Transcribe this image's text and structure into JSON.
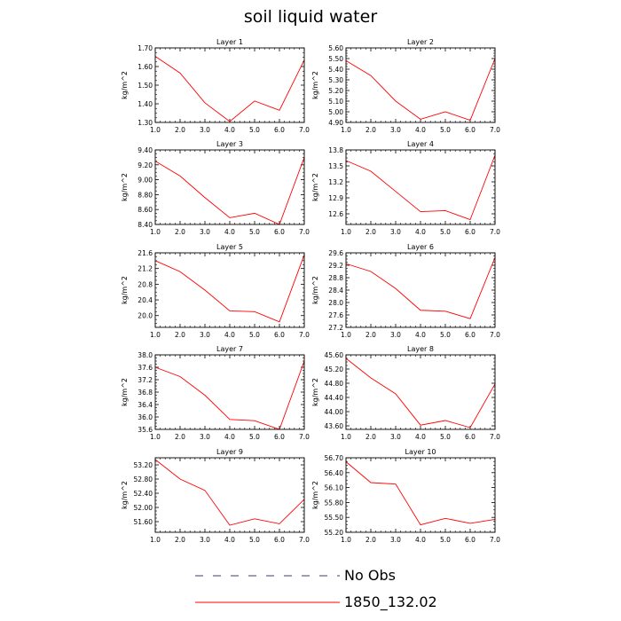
{
  "title": "soil liquid water",
  "legend": {
    "items": [
      {
        "label": "No Obs",
        "color": "#3a3a7a",
        "dash": true
      },
      {
        "label": "1850_132.02",
        "color": "#ff0000",
        "dash": false
      }
    ]
  },
  "chart_data": [
    {
      "type": "line",
      "title": "Layer 1",
      "ylabel": "kg/m^2",
      "x": [
        1,
        2,
        3,
        4,
        5,
        6,
        7
      ],
      "xticks": [
        "1.0",
        "2.0",
        "3.0",
        "4.0",
        "5.0",
        "6.0",
        "7.0"
      ],
      "ylim": [
        1.3,
        1.7
      ],
      "yticks": [
        "1.30",
        "1.40",
        "1.50",
        "1.60",
        "1.70"
      ],
      "series": [
        {
          "color": "#ff0000",
          "values": [
            1.655,
            1.565,
            1.405,
            1.305,
            1.415,
            1.365,
            1.635
          ]
        }
      ]
    },
    {
      "type": "line",
      "title": "Layer 2",
      "ylabel": "kg/m^2",
      "x": [
        1,
        2,
        3,
        4,
        5,
        6,
        7
      ],
      "xticks": [
        "1.0",
        "2.0",
        "3.0",
        "4.0",
        "5.0",
        "6.0",
        "7.0"
      ],
      "ylim": [
        4.9,
        5.6
      ],
      "yticks": [
        "4.90",
        "5.00",
        "5.10",
        "5.20",
        "5.30",
        "5.40",
        "5.50",
        "5.60"
      ],
      "series": [
        {
          "color": "#ff0000",
          "values": [
            5.48,
            5.34,
            5.1,
            4.93,
            5.0,
            4.92,
            5.5
          ]
        }
      ]
    },
    {
      "type": "line",
      "title": "Layer 3",
      "ylabel": "kg/m^2",
      "x": [
        1,
        2,
        3,
        4,
        5,
        6,
        7
      ],
      "xticks": [
        "1.0",
        "2.0",
        "3.0",
        "4.0",
        "5.0",
        "6.0",
        "7.0"
      ],
      "ylim": [
        8.4,
        9.4
      ],
      "yticks": [
        "8.40",
        "8.60",
        "8.80",
        "9.00",
        "9.20",
        "9.40"
      ],
      "series": [
        {
          "color": "#ff0000",
          "values": [
            9.25,
            9.05,
            8.76,
            8.49,
            8.55,
            8.4,
            9.3
          ]
        }
      ]
    },
    {
      "type": "line",
      "title": "Layer 4",
      "ylabel": "kg/m^2",
      "x": [
        1,
        2,
        3,
        4,
        5,
        6,
        7
      ],
      "xticks": [
        "1.0",
        "2.0",
        "3.0",
        "4.0",
        "5.0",
        "6.0",
        "7.0"
      ],
      "ylim": [
        12.4,
        13.8
      ],
      "yticks": [
        "12.6",
        "12.9",
        "13.2",
        "13.5",
        "13.8"
      ],
      "series": [
        {
          "color": "#ff0000",
          "values": [
            13.6,
            13.4,
            13.02,
            12.64,
            12.66,
            12.49,
            13.7
          ]
        }
      ]
    },
    {
      "type": "line",
      "title": "Layer 5",
      "ylabel": "kg/m^2",
      "x": [
        1,
        2,
        3,
        4,
        5,
        6,
        7
      ],
      "xticks": [
        "1.0",
        "2.0",
        "3.0",
        "4.0",
        "5.0",
        "6.0",
        "7.0"
      ],
      "ylim": [
        19.7,
        21.6
      ],
      "yticks": [
        "20.0",
        "20.4",
        "20.8",
        "21.2",
        "21.6"
      ],
      "series": [
        {
          "color": "#ff0000",
          "values": [
            21.4,
            21.12,
            20.65,
            20.12,
            20.1,
            19.84,
            21.55
          ]
        }
      ]
    },
    {
      "type": "line",
      "title": "Layer 6",
      "ylabel": "kg/m^2",
      "x": [
        1,
        2,
        3,
        4,
        5,
        6,
        7
      ],
      "xticks": [
        "1.0",
        "2.0",
        "3.0",
        "4.0",
        "5.0",
        "6.0",
        "7.0"
      ],
      "ylim": [
        27.2,
        29.6
      ],
      "yticks": [
        "27.2",
        "27.6",
        "28.0",
        "28.4",
        "28.8",
        "29.2",
        "29.6"
      ],
      "series": [
        {
          "color": "#ff0000",
          "values": [
            29.25,
            29.0,
            28.45,
            27.75,
            27.72,
            27.48,
            29.45
          ]
        }
      ]
    },
    {
      "type": "line",
      "title": "Layer 7",
      "ylabel": "kg/m^2",
      "x": [
        1,
        2,
        3,
        4,
        5,
        6,
        7
      ],
      "xticks": [
        "1.0",
        "2.0",
        "3.0",
        "4.0",
        "5.0",
        "6.0",
        "7.0"
      ],
      "ylim": [
        35.6,
        38.0
      ],
      "yticks": [
        "35.6",
        "36.0",
        "36.4",
        "36.8",
        "37.2",
        "37.6",
        "38.0"
      ],
      "series": [
        {
          "color": "#ff0000",
          "values": [
            37.6,
            37.3,
            36.7,
            35.92,
            35.88,
            35.6,
            37.8
          ]
        }
      ]
    },
    {
      "type": "line",
      "title": "Layer 8",
      "ylabel": "kg/m^2",
      "x": [
        1,
        2,
        3,
        4,
        5,
        6,
        7
      ],
      "xticks": [
        "1.0",
        "2.0",
        "3.0",
        "4.0",
        "5.0",
        "6.0",
        "7.0"
      ],
      "ylim": [
        43.5,
        45.6
      ],
      "yticks": [
        "43.60",
        "44.00",
        "44.40",
        "44.80",
        "45.20",
        "45.60"
      ],
      "series": [
        {
          "color": "#ff0000",
          "values": [
            45.5,
            44.95,
            44.5,
            43.62,
            43.75,
            43.55,
            44.78
          ]
        }
      ]
    },
    {
      "type": "line",
      "title": "Layer 9",
      "ylabel": "kg/m^2",
      "x": [
        1,
        2,
        3,
        4,
        5,
        6,
        7
      ],
      "xticks": [
        "1.0",
        "2.0",
        "3.0",
        "4.0",
        "5.0",
        "6.0",
        "7.0"
      ],
      "ylim": [
        51.3,
        53.4
      ],
      "yticks": [
        "51.60",
        "52.00",
        "52.40",
        "52.80",
        "53.20"
      ],
      "series": [
        {
          "color": "#ff0000",
          "values": [
            53.35,
            52.8,
            52.48,
            51.5,
            51.68,
            51.54,
            52.23
          ]
        }
      ]
    },
    {
      "type": "line",
      "title": "Layer 10",
      "ylabel": "kg/m^2",
      "x": [
        1,
        2,
        3,
        4,
        5,
        6,
        7
      ],
      "xticks": [
        "1.0",
        "2.0",
        "3.0",
        "4.0",
        "5.0",
        "6.0",
        "7.0"
      ],
      "ylim": [
        55.2,
        56.7
      ],
      "yticks": [
        "55.20",
        "55.50",
        "55.80",
        "56.10",
        "56.40",
        "56.70"
      ],
      "series": [
        {
          "color": "#ff0000",
          "values": [
            56.62,
            56.2,
            56.17,
            55.35,
            55.48,
            55.38,
            55.46
          ]
        }
      ]
    }
  ]
}
